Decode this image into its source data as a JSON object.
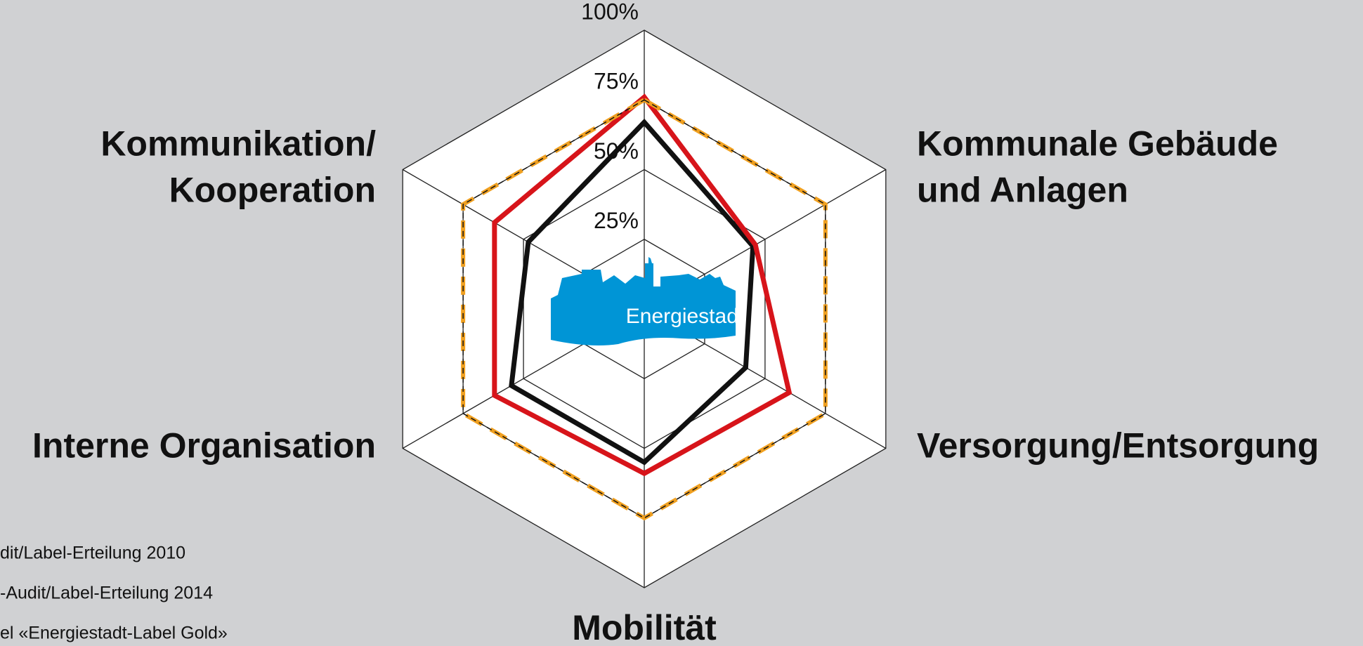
{
  "chart_data": {
    "type": "radar",
    "categories": [
      null,
      "Kommunale Gebäude und Anlagen",
      "Versorgung/Entsorgung",
      "Mobilität",
      "Interne Organisation",
      "Kommunikation/ Kooperation"
    ],
    "category_lines": [
      [],
      [
        "Kommunale Gebäude",
        "und Anlagen"
      ],
      [
        "Versorgung/Entsorgung"
      ],
      [
        "Mobilität"
      ],
      [
        "Interne Organisation"
      ],
      [
        "Kommunikation/",
        "Kooperation"
      ]
    ],
    "rlim": [
      0,
      100
    ],
    "rticks": [
      {
        "value": 25,
        "label": "25%"
      },
      {
        "value": 50,
        "label": "50%"
      },
      {
        "value": 75,
        "label": "75%"
      },
      {
        "value": 100,
        "label": "100%"
      }
    ],
    "series": [
      {
        "name": "dit/Label-Erteilung 2010",
        "color": "#111111",
        "values": [
          67,
          45,
          42,
          55,
          55,
          48
        ]
      },
      {
        "name": "-Audit/Label-Erteilung 2014",
        "color": "#d7141a",
        "values": [
          76,
          46,
          60,
          59,
          62,
          62
        ]
      },
      {
        "name": "el «Energiestadt-Label Gold»",
        "color": "#f0a020",
        "dashed": true,
        "values": [
          75,
          75,
          75,
          75,
          75,
          75
        ]
      }
    ],
    "logo_text": "Energiestadt"
  }
}
